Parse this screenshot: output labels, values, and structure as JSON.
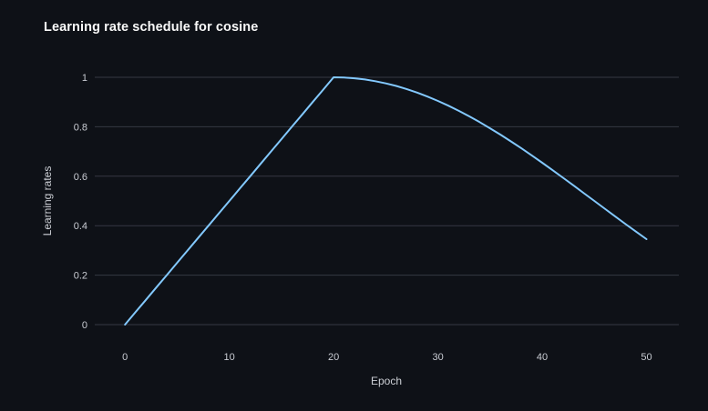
{
  "page": {
    "background": "#0e1117"
  },
  "colors": {
    "title_text": "#fafafa",
    "axis_text": "#cdd0d6",
    "gridline": "#363943",
    "line": "#83c9ff"
  },
  "chart_data": {
    "type": "line",
    "title": "Learning rate schedule for cosine",
    "xlabel": "Epoch",
    "ylabel": "Learning rates",
    "x_ticks": [
      0,
      10,
      20,
      30,
      40,
      50
    ],
    "x_tick_labels": [
      "0",
      "10",
      "20",
      "30",
      "40",
      "50"
    ],
    "y_ticks": [
      0,
      0.2,
      0.4,
      0.6,
      0.8,
      1
    ],
    "y_tick_labels": [
      "0",
      "0.2",
      "0.4",
      "0.6",
      "0.8",
      "1"
    ],
    "xlim": [
      -2.9,
      53.1
    ],
    "ylim": [
      0,
      1
    ],
    "grid": "horizontal-only",
    "legend_position": "none",
    "line_color": "#83c9ff",
    "description": "Linear warmup from 0 to 1 over epochs 0-20, then cosine decay 0.5*(1+cos(pi*(t-20)/50)) through epoch 50",
    "series": [
      {
        "name": "learning_rate",
        "x": [
          0,
          1,
          2,
          3,
          4,
          5,
          6,
          7,
          8,
          9,
          10,
          11,
          12,
          13,
          14,
          15,
          16,
          17,
          18,
          19,
          20,
          21,
          22,
          23,
          24,
          25,
          26,
          27,
          28,
          29,
          30,
          31,
          32,
          33,
          34,
          35,
          36,
          37,
          38,
          39,
          40,
          41,
          42,
          43,
          44,
          45,
          46,
          47,
          48,
          49,
          50
        ],
        "y": [
          0,
          0.05,
          0.1,
          0.15,
          0.2,
          0.25,
          0.3,
          0.35,
          0.4,
          0.45,
          0.5,
          0.55,
          0.6,
          0.65,
          0.7,
          0.75,
          0.8,
          0.85,
          0.9,
          0.95,
          1,
          0.999,
          0.9961,
          0.9911,
          0.9843,
          0.9755,
          0.9649,
          0.9524,
          0.9382,
          0.9222,
          0.9045,
          0.8853,
          0.8645,
          0.8423,
          0.8187,
          0.7939,
          0.7679,
          0.7409,
          0.7129,
          0.6841,
          0.6545,
          0.6243,
          0.5937,
          0.5627,
          0.5314,
          0.5,
          0.4686,
          0.4373,
          0.4063,
          0.3757,
          0.3455
        ]
      }
    ]
  }
}
